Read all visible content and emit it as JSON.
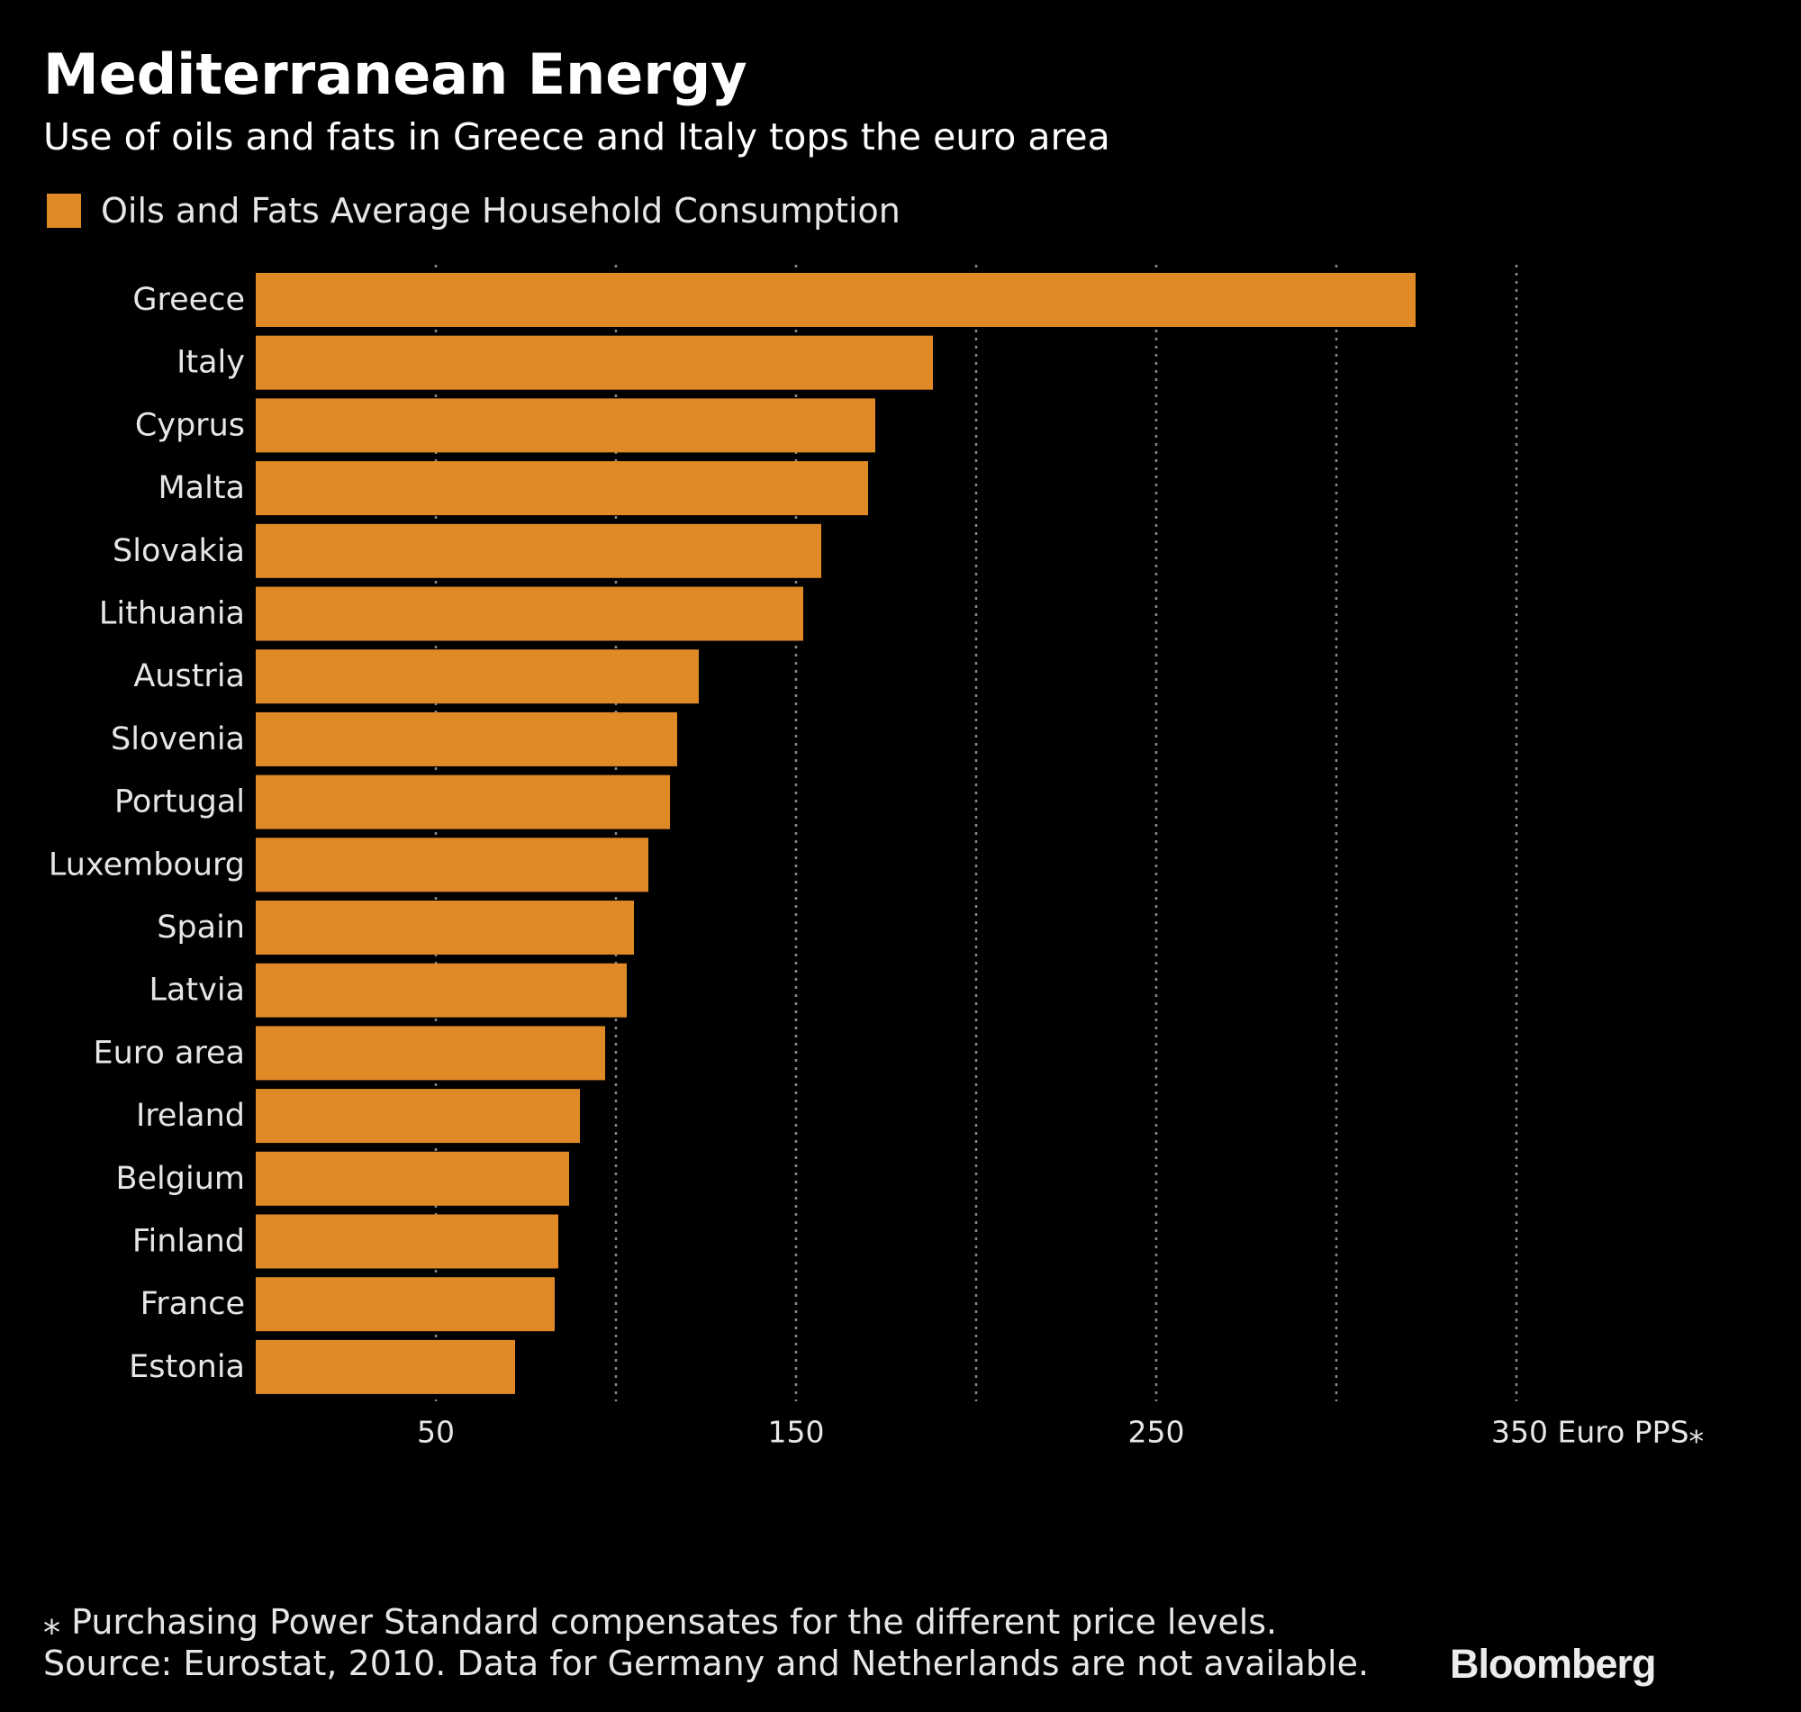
{
  "chart_data": {
    "type": "bar",
    "orientation": "horizontal",
    "title": "Mediterranean Energy",
    "subtitle": "Use of oils and fats in Greece and Italy tops the euro area",
    "series": [
      {
        "name": "Oils and Fats Average Household Consumption",
        "color": "#e08a27",
        "values": [
          322,
          188,
          172,
          170,
          157,
          152,
          123,
          117,
          115,
          109,
          105,
          103,
          97,
          90,
          87,
          84,
          83,
          72
        ]
      }
    ],
    "categories": [
      "Greece",
      "Italy",
      "Cyprus",
      "Malta",
      "Slovakia",
      "Lithuania",
      "Austria",
      "Slovenia",
      "Portugal",
      "Luxembourg",
      "Spain",
      "Latvia",
      "Euro area",
      "Ireland",
      "Belgium",
      "Finland",
      "France",
      "Estonia"
    ],
    "xlim": [
      0,
      350
    ],
    "gridlines": [
      50,
      100,
      150,
      200,
      250,
      300,
      350
    ],
    "tick_values": [
      50,
      150,
      250,
      350
    ],
    "tick_labels": [
      "50",
      "150",
      "250",
      "350 Euro PPS⁎"
    ],
    "grid": true,
    "legend_position": "top-left"
  },
  "footnote": {
    "line1": "⁎ Purchasing Power Standard compensates for the different price levels.",
    "line2": "Source: Eurostat, 2010. Data for Germany and Netherlands are not available."
  },
  "logo": "Bloomberg",
  "colors": {
    "background": "#000000",
    "bar": "#e08a27",
    "grid": "#8a8a8a",
    "text": "#ffffff",
    "secondary_text": "#e6e6e6"
  }
}
